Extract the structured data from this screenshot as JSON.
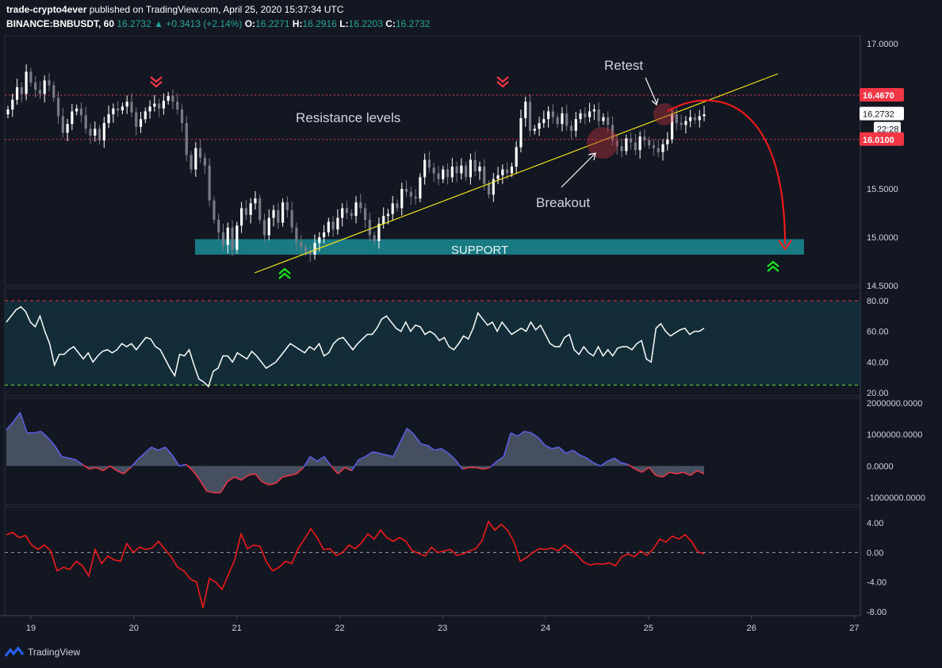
{
  "header": {
    "publisher": "trade-crypto4ever",
    "published_text": " published on TradingView.com, April 25, 2020 15:37:34 UTC",
    "symbol": "BINANCE:BNBUSDT, 60",
    "last": "16.2732",
    "change": "▲ +0.3413 (+2.14%)",
    "o_label": "O:",
    "o": "16.2271",
    "h_label": "H:",
    "h": "16.2916",
    "l_label": "L:",
    "l": "16.2203",
    "c_label": "C:",
    "c": "16.2732"
  },
  "brand": {
    "name": "TradingView",
    "icon": "tradingview-logo-icon"
  },
  "colors": {
    "bg": "#131722",
    "up": "#ffffff",
    "down": "#787b86",
    "accent": "#26a69a",
    "resistance": "#f23645",
    "trend": "#f5e316",
    "support": "#1a8c94",
    "osc_line": "#ffffff",
    "macd_fill": "#4c5566",
    "macd_pos": "#5d5fef",
    "macd_neg": "#f23645",
    "mom": "#ff1a1a"
  },
  "annotations": {
    "resistance": "Resistance levels",
    "retest": "Retest",
    "breakout": "Breakout",
    "support": "SUPPORT"
  },
  "chart_data": [
    {
      "type": "candlestick",
      "title": "BINANCE:BNBUSDT, 60",
      "x_ticks": [
        "19",
        "20",
        "21",
        "22",
        "23",
        "24",
        "25",
        "26",
        "27"
      ],
      "ylim": [
        14.5,
        17.0
      ],
      "y_ticks": [
        "17.0000",
        "16.5000",
        "16.0000",
        "15.5000",
        "15.0000",
        "14.5000"
      ],
      "price_labels": [
        {
          "value": "16.4670",
          "kind": "resistance"
        },
        {
          "value": "16.2732",
          "kind": "last"
        },
        {
          "value": "22:28",
          "kind": "countdown"
        },
        {
          "value": "16.0100",
          "kind": "resistance"
        }
      ],
      "resistance_levels": [
        16.467,
        16.01
      ],
      "support_zone": [
        14.82,
        14.98
      ],
      "trendline": {
        "from": {
          "day": "21.2",
          "price": 14.63
        },
        "to": {
          "day": "25.6",
          "price": 16.72
        }
      },
      "close": [
        16.32,
        16.42,
        16.55,
        16.48,
        16.71,
        16.6,
        16.52,
        16.48,
        16.62,
        16.57,
        16.44,
        16.25,
        16.08,
        16.17,
        16.3,
        16.33,
        16.26,
        16.12,
        16.05,
        16.12,
        16.0,
        16.18,
        16.27,
        16.33,
        16.31,
        16.35,
        16.4,
        16.29,
        16.14,
        16.22,
        16.3,
        16.35,
        16.38,
        16.33,
        16.41,
        16.46,
        16.4,
        16.32,
        16.18,
        15.85,
        15.7,
        15.92,
        15.82,
        15.74,
        15.38,
        15.18,
        15.05,
        14.92,
        15.1,
        14.87,
        15.12,
        15.3,
        15.23,
        15.35,
        15.4,
        15.18,
        15.02,
        15.2,
        15.28,
        15.15,
        15.36,
        15.28,
        15.1,
        14.95,
        14.9,
        14.85,
        14.82,
        14.94,
        15.0,
        15.05,
        15.16,
        15.08,
        15.2,
        15.3,
        15.25,
        15.22,
        15.36,
        15.3,
        15.18,
        15.02,
        14.96,
        15.14,
        15.22,
        15.24,
        15.35,
        15.3,
        15.5,
        15.47,
        15.42,
        15.4,
        15.62,
        15.8,
        15.72,
        15.66,
        15.6,
        15.7,
        15.62,
        15.73,
        15.66,
        15.74,
        15.62,
        15.8,
        15.68,
        15.73,
        15.55,
        15.44,
        15.6,
        15.64,
        15.7,
        15.66,
        15.73,
        15.93,
        16.23,
        16.4,
        16.1,
        16.12,
        16.18,
        16.22,
        16.3,
        16.24,
        16.17,
        16.28,
        16.15,
        16.1,
        16.22,
        16.28,
        16.24,
        16.3,
        16.32,
        16.2,
        16.24,
        16.16,
        16.0,
        15.94,
        15.89,
        16.02,
        15.98,
        15.9,
        16.04,
        16.0,
        15.95,
        15.92,
        15.88,
        15.96,
        16.01,
        16.27,
        16.18,
        16.16,
        16.2,
        16.24,
        16.21,
        16.25,
        16.27
      ],
      "rsi": {
        "ylim": [
          20,
          80
        ],
        "y_ticks": [
          "80.00",
          "60.00",
          "40.00",
          "20.00"
        ],
        "upper": 80,
        "lower": 25,
        "values": [
          66,
          70,
          74,
          76,
          73,
          66,
          63,
          70,
          60,
          52,
          38,
          45,
          45,
          48,
          50,
          46,
          42,
          46,
          40,
          44,
          47,
          48,
          46,
          48,
          52,
          50,
          52,
          48,
          52,
          56,
          55,
          50,
          48,
          42,
          36,
          31,
          45,
          44,
          48,
          38,
          29,
          27,
          24,
          34,
          36,
          44,
          44,
          40,
          46,
          44,
          42,
          47,
          44,
          40,
          36,
          38,
          40,
          44,
          48,
          52,
          50,
          48,
          46,
          50,
          48,
          52,
          44,
          46,
          52,
          55,
          56,
          52,
          48,
          52,
          55,
          58,
          58,
          62,
          68,
          70,
          66,
          62,
          60,
          66,
          60,
          64,
          63,
          58,
          60,
          58,
          54,
          56,
          50,
          48,
          52,
          57,
          55,
          62,
          72,
          68,
          64,
          66,
          60,
          66,
          62,
          58,
          60,
          62,
          60,
          66,
          61,
          64,
          58,
          52,
          50,
          50,
          56,
          58,
          48,
          45,
          50,
          46,
          44,
          50,
          44,
          48,
          44,
          49,
          50,
          50,
          48,
          52,
          54,
          42,
          40,
          62,
          65,
          60,
          57,
          59,
          61,
          62,
          58,
          60,
          60,
          62
        ]
      }
    },
    {
      "type": "area",
      "title": "",
      "ylim": [
        -1000000,
        2000000
      ],
      "y_ticks": [
        "2000000.0000",
        "1000000.0000",
        "0.0000",
        "-1000000.0000"
      ],
      "values": [
        1150000,
        1400000,
        1700000,
        1050000,
        1050000,
        1100000,
        900000,
        650000,
        300000,
        250000,
        200000,
        50000,
        -100000,
        -50000,
        -150000,
        0,
        -150000,
        -250000,
        -50000,
        200000,
        400000,
        600000,
        500000,
        600000,
        350000,
        0,
        50000,
        -150000,
        -450000,
        -800000,
        -850000,
        -850000,
        -500000,
        -350000,
        -450000,
        -300000,
        -250000,
        -500000,
        -600000,
        -550000,
        -350000,
        -300000,
        -250000,
        -50000,
        300000,
        150000,
        300000,
        0,
        -250000,
        -50000,
        -150000,
        200000,
        300000,
        450000,
        400000,
        350000,
        300000,
        750000,
        1200000,
        1000000,
        700000,
        650000,
        500000,
        550000,
        400000,
        200000,
        -100000,
        -50000,
        -50000,
        -100000,
        -50000,
        150000,
        300000,
        1050000,
        950000,
        1100000,
        1050000,
        900000,
        650000,
        550000,
        600000,
        400000,
        500000,
        350000,
        250000,
        100000,
        0,
        150000,
        250000,
        100000,
        50000,
        -100000,
        -200000,
        -50000,
        -300000,
        -350000,
        -200000,
        -250000,
        -200000,
        -300000,
        -150000,
        -250000
      ]
    },
    {
      "type": "line",
      "title": "",
      "ylim": [
        -8,
        6
      ],
      "y_ticks": [
        "4.00",
        "0.00",
        "-4.00",
        "-8.00"
      ],
      "zero_line": true,
      "values": [
        2.4,
        2.7,
        2.0,
        2.3,
        1.0,
        0.4,
        1.0,
        0.2,
        -2.5,
        -2.0,
        -2.3,
        -1.2,
        -1.8,
        -3.2,
        0.4,
        -1.5,
        -0.5,
        -1.0,
        -1.2,
        1.2,
        0.0,
        0.7,
        0.4,
        0.6,
        1.5,
        0.4,
        -0.6,
        -2.0,
        -2.5,
        -3.6,
        -4.0,
        -7.5,
        -3.5,
        -4.0,
        -5.0,
        -3.0,
        -1.0,
        2.5,
        0.5,
        1.0,
        0.8,
        -1.3,
        -2.5,
        -2.0,
        -1.2,
        -1.5,
        0.5,
        1.8,
        3.2,
        2.0,
        0.4,
        0.5,
        -0.4,
        0.0,
        1.0,
        0.5,
        1.3,
        2.5,
        1.8,
        3.0,
        2.0,
        1.5,
        2.0,
        1.5,
        0.2,
        -0.1,
        -0.5,
        0.7,
        0.0,
        0.2,
        0.4,
        -0.4,
        -0.2,
        0.2,
        0.5,
        1.6,
        4.2,
        3.0,
        3.8,
        3.0,
        1.5,
        -1.2,
        -0.7,
        0.0,
        0.5,
        0.4,
        0.6,
        0.2,
        1.0,
        0.4,
        -0.4,
        -1.3,
        -1.7,
        -1.5,
        -1.6,
        -1.4,
        -1.8,
        -0.6,
        -0.2,
        -0.6,
        0.2,
        -0.4,
        0.5,
        1.8,
        1.4,
        2.2,
        1.8,
        2.4,
        1.5,
        0.1,
        -0.2
      ]
    }
  ]
}
